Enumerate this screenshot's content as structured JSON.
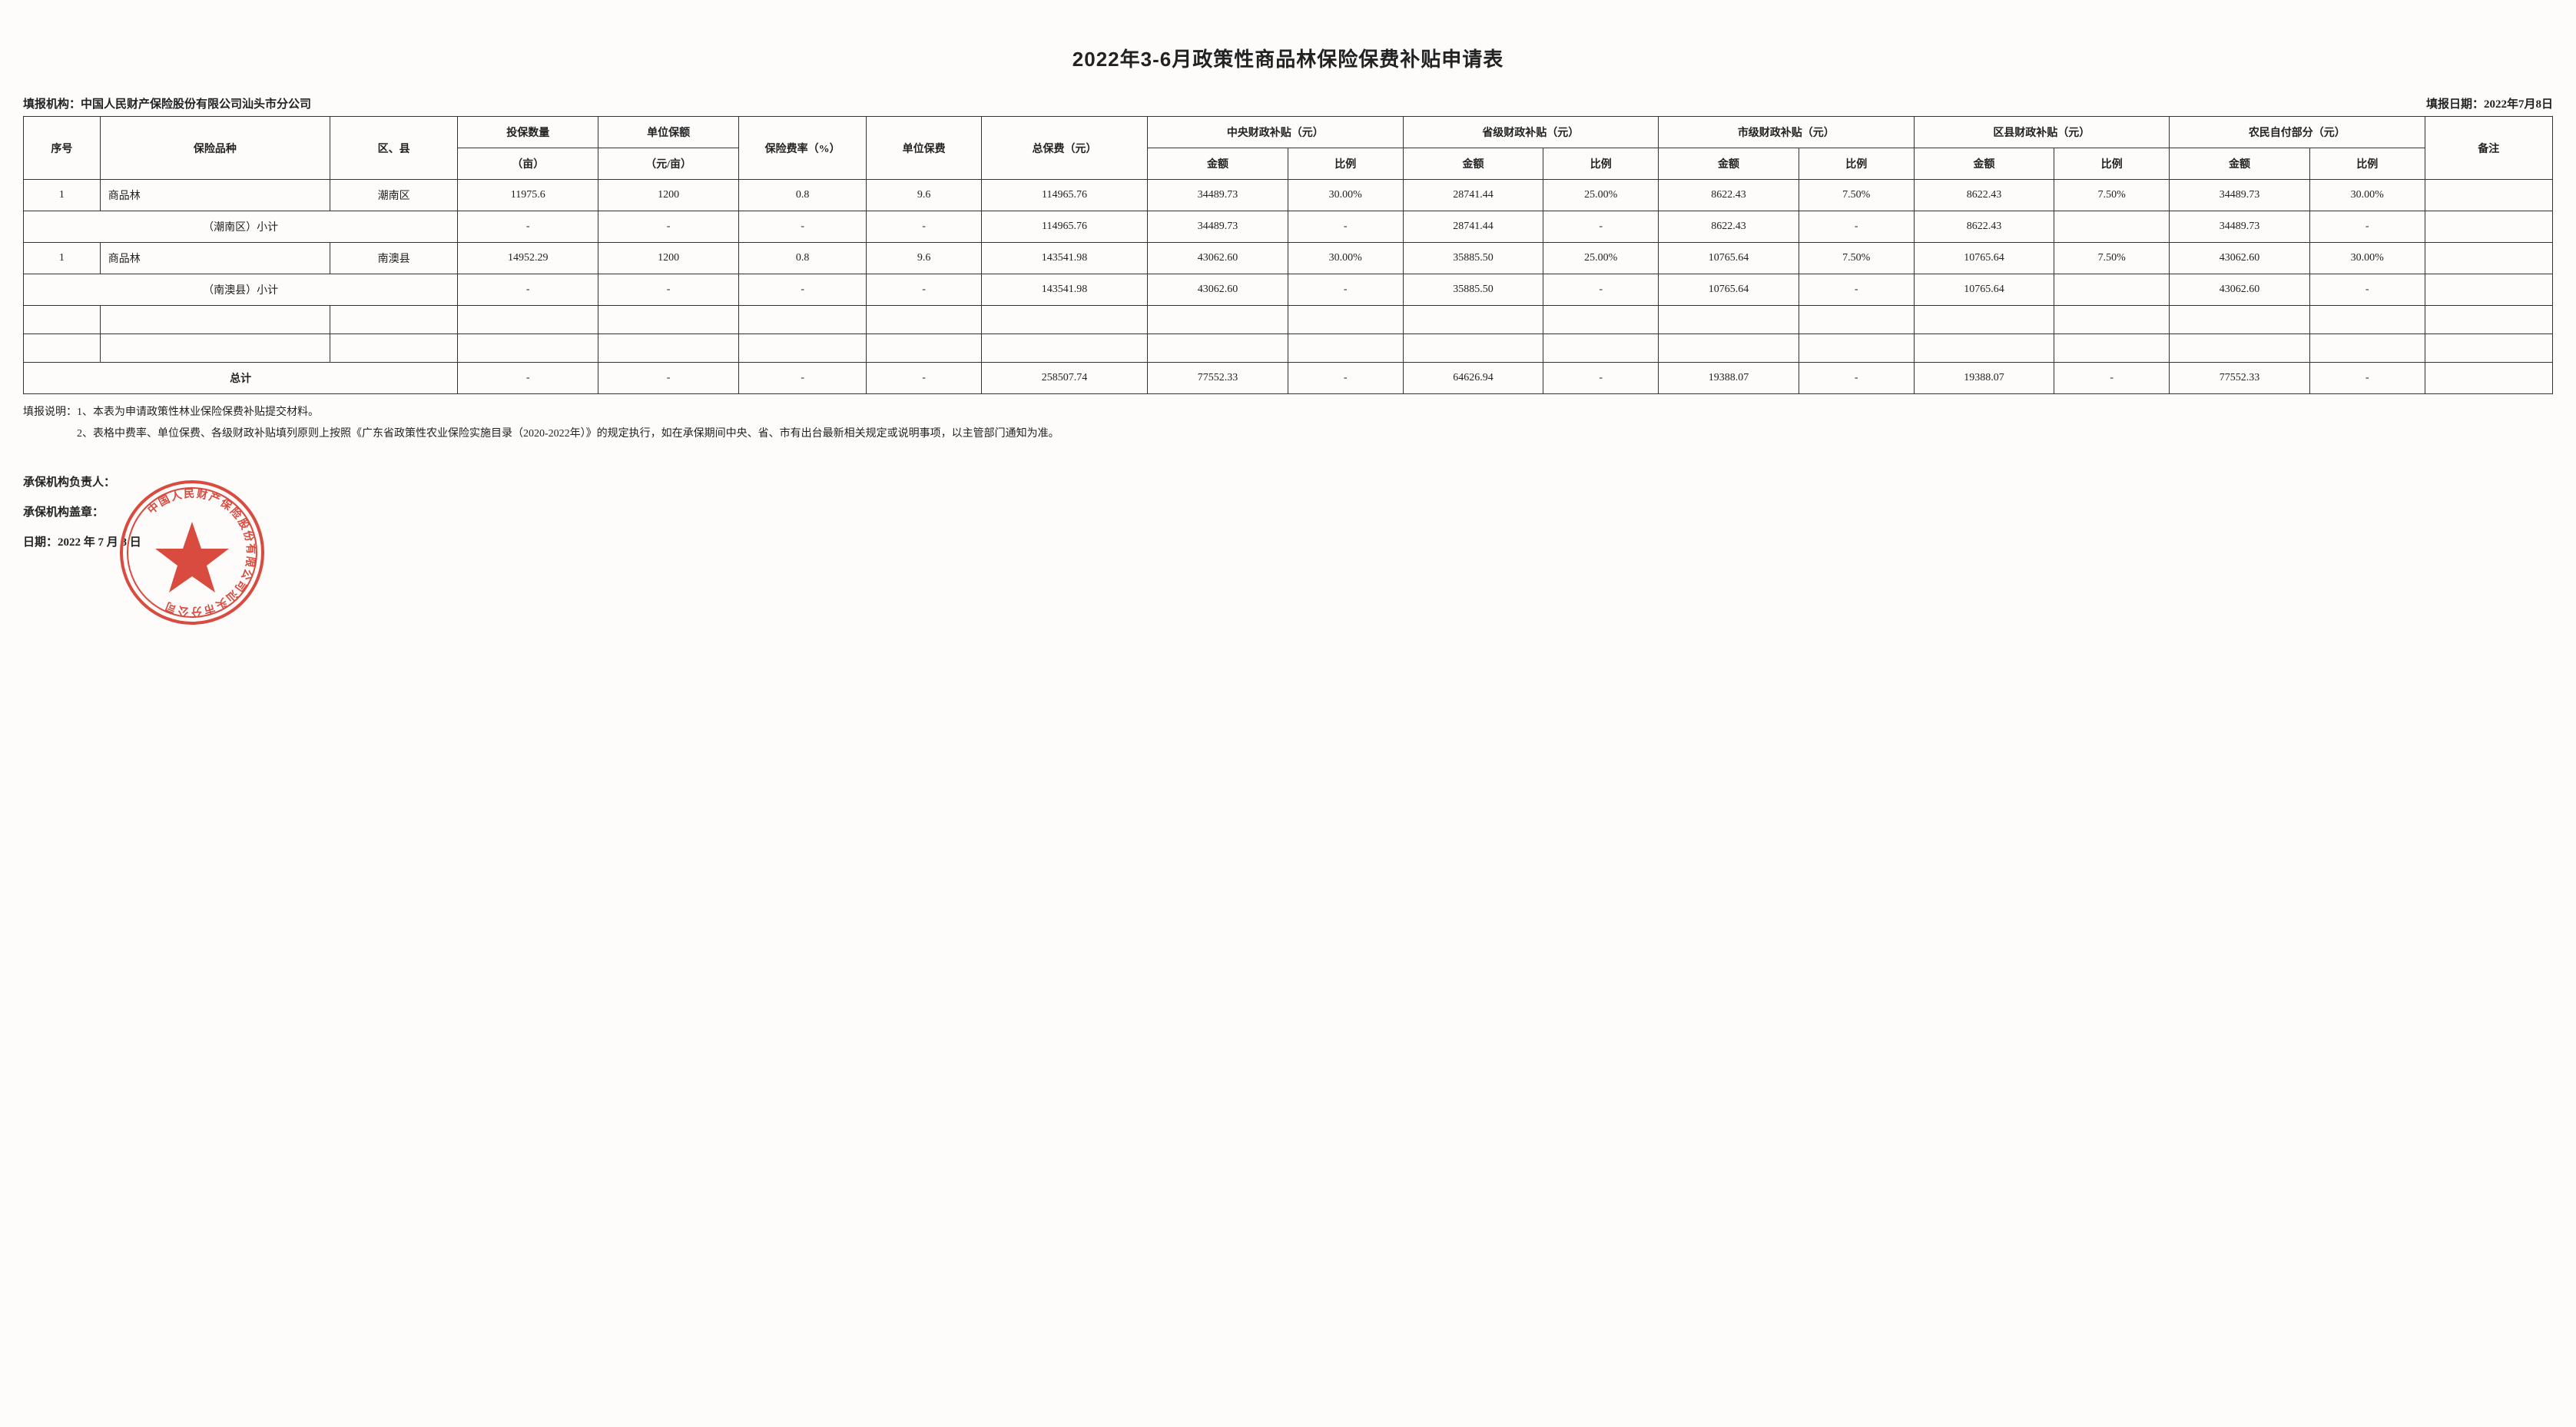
{
  "title": "2022年3-6月政策性商品林保险保费补贴申请表",
  "meta": {
    "org_label": "填报机构：",
    "org_value": "中国人民财产保险股份有限公司汕头市分公司",
    "date_label": "填报日期：",
    "date_value": "2022年7月8日"
  },
  "headers": {
    "seq": "序号",
    "product": "保险品种",
    "region": "区、县",
    "qty": "投保数量",
    "qty_unit": "（亩）",
    "unit_amount": "单位保额",
    "unit_amount_unit": "（元/亩）",
    "rate": "保险费率（%）",
    "unit_premium": "单位保费",
    "total_premium": "总保费（元）",
    "central": "中央财政补贴（元）",
    "province": "省级财政补贴（元）",
    "city": "市级财政补贴（元）",
    "county": "区县财政补贴（元）",
    "farmer": "农民自付部分（元）",
    "remark": "备注",
    "amount": "金额",
    "ratio": "比例"
  },
  "rows": [
    {
      "seq": "1",
      "product": "商品林",
      "region": "潮南区",
      "qty": "11975.6",
      "unit_amount": "1200",
      "rate": "0.8",
      "unit_premium": "9.6",
      "total_premium": "114965.76",
      "central_amt": "34489.73",
      "central_ratio": "30.00%",
      "province_amt": "28741.44",
      "province_ratio": "25.00%",
      "city_amt": "8622.43",
      "city_ratio": "7.50%",
      "county_amt": "8622.43",
      "county_ratio": "7.50%",
      "farmer_amt": "34489.73",
      "farmer_ratio": "30.00%",
      "remark": ""
    },
    {
      "subtotal_label": "（潮南区）小计",
      "qty": "-",
      "unit_amount": "-",
      "rate": "-",
      "unit_premium": "-",
      "total_premium": "114965.76",
      "central_amt": "34489.73",
      "central_ratio": "-",
      "province_amt": "28741.44",
      "province_ratio": "-",
      "city_amt": "8622.43",
      "city_ratio": "-",
      "county_amt": "8622.43",
      "county_ratio": "",
      "farmer_amt": "34489.73",
      "farmer_ratio": "-",
      "remark": ""
    },
    {
      "seq": "1",
      "product": "商品林",
      "region": "南澳县",
      "qty": "14952.29",
      "unit_amount": "1200",
      "rate": "0.8",
      "unit_premium": "9.6",
      "total_premium": "143541.98",
      "central_amt": "43062.60",
      "central_ratio": "30.00%",
      "province_amt": "35885.50",
      "province_ratio": "25.00%",
      "city_amt": "10765.64",
      "city_ratio": "7.50%",
      "county_amt": "10765.64",
      "county_ratio": "7.50%",
      "farmer_amt": "43062.60",
      "farmer_ratio": "30.00%",
      "remark": ""
    },
    {
      "subtotal_label": "（南澳县）小计",
      "qty": "-",
      "unit_amount": "-",
      "rate": "-",
      "unit_premium": "-",
      "total_premium": "143541.98",
      "central_amt": "43062.60",
      "central_ratio": "-",
      "province_amt": "35885.50",
      "province_ratio": "-",
      "city_amt": "10765.64",
      "city_ratio": "-",
      "county_amt": "10765.64",
      "county_ratio": "",
      "farmer_amt": "43062.60",
      "farmer_ratio": "-",
      "remark": ""
    }
  ],
  "total": {
    "label": "总计",
    "qty": "-",
    "unit_amount": "-",
    "rate": "-",
    "unit_premium": "-",
    "total_premium": "258507.74",
    "central_amt": "77552.33",
    "central_ratio": "-",
    "province_amt": "64626.94",
    "province_ratio": "-",
    "city_amt": "19388.07",
    "city_ratio": "-",
    "county_amt": "19388.07",
    "county_ratio": "-",
    "farmer_amt": "77552.33",
    "farmer_ratio": "-",
    "remark": ""
  },
  "notes": {
    "prefix": "填报说明：",
    "n1": "1、本表为申请政策性林业保险保费补贴提交材料。",
    "n2": "2、表格中费率、单位保费、各级财政补贴填列原则上按照《广东省政策性农业保险实施目录（2020-2022年）》的规定执行，如在承保期间中央、省、市有出台最新相关规定或说明事项，以主管部门通知为准。"
  },
  "footer": {
    "manager": "承保机构负责人：",
    "seal": "承保机构盖章：",
    "date_label": "日期：",
    "date_value": "2022 年 7 月 8 日"
  },
  "stamp": {
    "color": "#d94a3f",
    "text": "中国人民财产保险股份有限公司汕头市分公司"
  }
}
